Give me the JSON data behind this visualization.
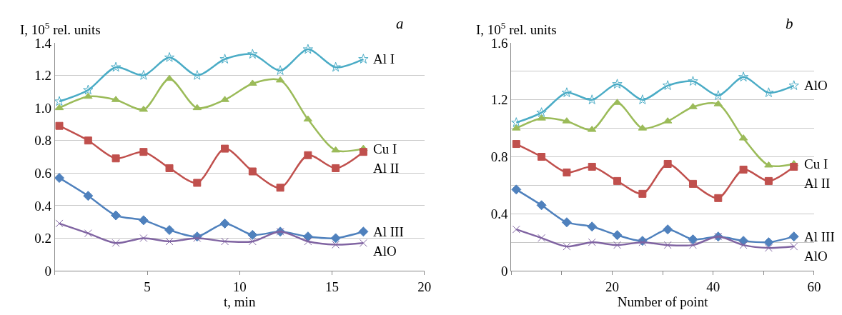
{
  "chart_data": [
    {
      "type": "line",
      "title": "a",
      "xlabel": "t, min",
      "ylabel": "I, 10$^{5}$ rel. units",
      "x": [
        0.24,
        1.8,
        3.3,
        4.8,
        6.2,
        7.7,
        9.2,
        10.7,
        12.2,
        13.7,
        15.2,
        16.7
      ],
      "series": [
        {
          "name": "Al I",
          "color": "#4bacc6",
          "marker": "star",
          "values": [
            1.04,
            1.11,
            1.25,
            1.2,
            1.31,
            1.2,
            1.3,
            1.33,
            1.23,
            1.36,
            1.25,
            1.3
          ]
        },
        {
          "name": "Cu I",
          "color": "#9bbb59",
          "marker": "triangle",
          "values": [
            1.0,
            1.07,
            1.05,
            0.99,
            1.18,
            1.0,
            1.05,
            1.15,
            1.17,
            0.93,
            0.74,
            0.75
          ]
        },
        {
          "name": "Al II",
          "color": "#c0504d",
          "marker": "square",
          "values": [
            0.89,
            0.8,
            0.69,
            0.73,
            0.63,
            0.54,
            0.75,
            0.61,
            0.51,
            0.71,
            0.63,
            0.73
          ]
        },
        {
          "name": "Al III",
          "color": "#4f81bd",
          "marker": "diamond",
          "values": [
            0.57,
            0.46,
            0.34,
            0.31,
            0.25,
            0.21,
            0.29,
            0.22,
            0.24,
            0.21,
            0.2,
            0.24
          ]
        },
        {
          "name": "AlO",
          "color": "#8064a2",
          "marker": "cross",
          "values": [
            0.29,
            0.23,
            0.17,
            0.2,
            0.18,
            0.2,
            0.18,
            0.18,
            0.24,
            0.18,
            0.16,
            0.17
          ]
        }
      ],
      "xlim": [
        0,
        20
      ],
      "xticks": [
        {
          "value": 0,
          "label": null
        },
        5,
        10,
        15,
        20
      ],
      "ylim": [
        0,
        1.4
      ],
      "yticks": [
        0,
        0.2,
        0.4,
        0.6,
        0.8,
        {
          "value": 1.0,
          "label": "1.0"
        },
        1.2,
        1.4
      ],
      "grid": "y",
      "line_style": "solid"
    },
    {
      "type": "line",
      "title": "b",
      "xlabel": "Number of point",
      "ylabel": "I, 10$^{5}$ rel. units",
      "x": [
        1,
        6,
        11,
        16,
        21,
        26,
        31,
        36,
        41,
        46,
        51,
        56
      ],
      "series": [
        {
          "name": "AlO",
          "color": "#4bacc6",
          "marker": "star",
          "values": [
            1.04,
            1.11,
            1.25,
            1.2,
            1.31,
            1.2,
            1.3,
            1.33,
            1.23,
            1.36,
            1.25,
            1.3
          ]
        },
        {
          "name": "Cu I",
          "color": "#9bbb59",
          "marker": "triangle",
          "values": [
            1.0,
            1.07,
            1.05,
            0.99,
            1.18,
            1.0,
            1.05,
            1.15,
            1.17,
            0.93,
            0.74,
            0.75
          ]
        },
        {
          "name": "Al II",
          "color": "#c0504d",
          "marker": "square",
          "values": [
            0.89,
            0.8,
            0.69,
            0.73,
            0.63,
            0.54,
            0.75,
            0.61,
            0.51,
            0.71,
            0.63,
            0.73
          ]
        },
        {
          "name": "Al III",
          "color": "#4f81bd",
          "marker": "diamond",
          "values": [
            0.57,
            0.46,
            0.34,
            0.31,
            0.25,
            0.21,
            0.29,
            0.22,
            0.24,
            0.21,
            0.2,
            0.24
          ]
        },
        {
          "name": "AlO",
          "color": "#8064a2",
          "marker": "cross",
          "values": [
            0.29,
            0.23,
            0.17,
            0.2,
            0.18,
            0.2,
            0.18,
            0.18,
            0.24,
            0.18,
            0.16,
            0.17
          ]
        }
      ],
      "xlim": [
        0,
        60
      ],
      "xticks": [
        {
          "value": 0,
          "label": null
        },
        {
          "value": 10,
          "label": null
        },
        20,
        {
          "value": 30,
          "label": null
        },
        40,
        {
          "value": 50,
          "label": null
        },
        60
      ],
      "ylim": [
        0,
        1.6
      ],
      "yticks": [
        0,
        {
          "value": 0.2,
          "label": null
        },
        0.4,
        {
          "value": 0.6,
          "label": null
        },
        0.8,
        {
          "value": 1.0,
          "label": null
        },
        1.2,
        {
          "value": 1.4,
          "label": null
        },
        1.6
      ],
      "grid": "y",
      "line_style": "solid"
    }
  ]
}
